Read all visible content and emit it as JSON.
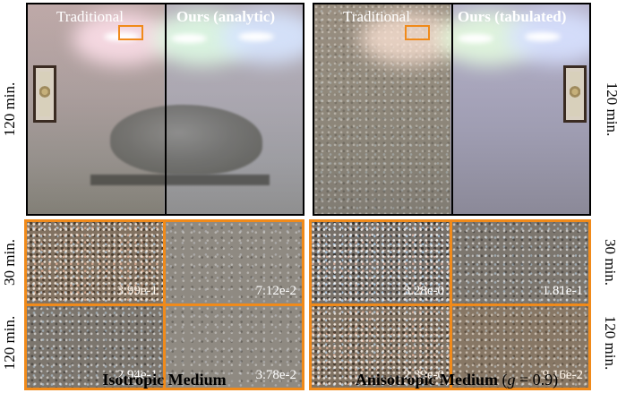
{
  "top_left": {
    "label_left": "Traditional",
    "label_right": "Ours (analytic)",
    "time": "120 min."
  },
  "top_right": {
    "label_left": "Traditional",
    "label_right": "Ours (tabulated)",
    "time": "120 min."
  },
  "bottom_left": {
    "row_times": [
      "30 min.",
      "120 min."
    ],
    "errors": [
      [
        "3.99e-1",
        "7.12e-2"
      ],
      [
        "2.94e-1",
        "3.78e-2"
      ]
    ],
    "caption": "Isotropic Medium"
  },
  "bottom_right": {
    "row_times": [
      "30 min.",
      "120 min."
    ],
    "errors": [
      [
        "3.28e-0",
        "1.81e-1"
      ],
      [
        "2.39e-0",
        "9.16e-2"
      ]
    ],
    "caption_bold": "Anisotropic Medium",
    "caption_open": "(",
    "caption_var": "g",
    "caption_eq": " = 0.9)"
  },
  "colors": {
    "highlight": "#f08a1a",
    "border": "#000000"
  }
}
